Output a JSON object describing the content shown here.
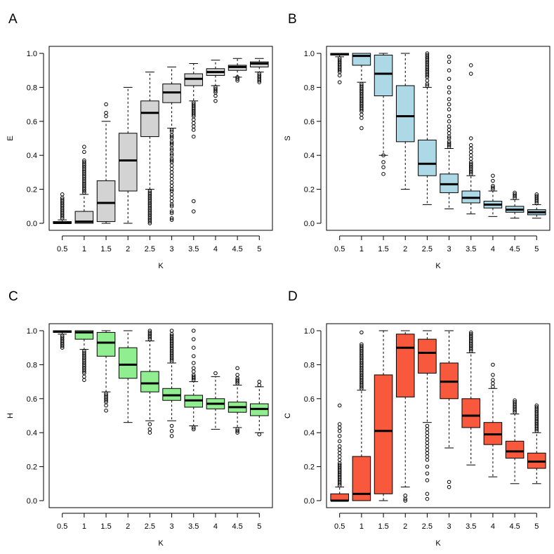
{
  "chart_data": [
    {
      "type": "boxplot",
      "panel_label": "A",
      "xlabel": "K",
      "ylabel": "E",
      "ylim": [
        0,
        1
      ],
      "y_ticks": [
        "0.0",
        "0.2",
        "0.4",
        "0.6",
        "0.8",
        "1.0"
      ],
      "categories": [
        "0.5",
        "1",
        "1.5",
        "2",
        "2.5",
        "3",
        "3.5",
        "4",
        "4.5",
        "5"
      ],
      "box_color": "#d3d3d3",
      "boxes": [
        {
          "category": "0.5",
          "low": 0.0,
          "q1": 0.0,
          "median": 0.002,
          "q3": 0.01,
          "high": 0.02,
          "outliers": [
            0.03,
            0.04,
            0.05,
            0.06,
            0.07,
            0.08,
            0.09,
            0.1,
            0.11,
            0.12,
            0.13,
            0.14,
            0.15,
            0.17
          ]
        },
        {
          "category": "1",
          "low": 0.0,
          "q1": 0.0,
          "median": 0.01,
          "q3": 0.07,
          "high": 0.17,
          "outliers": [
            0.18,
            0.19,
            0.2,
            0.21,
            0.22,
            0.23,
            0.24,
            0.25,
            0.26,
            0.27,
            0.28,
            0.29,
            0.3,
            0.31,
            0.32,
            0.33,
            0.34,
            0.35,
            0.36,
            0.37,
            0.42,
            0.45
          ]
        },
        {
          "category": "1.5",
          "low": 0.0,
          "q1": 0.01,
          "median": 0.12,
          "q3": 0.25,
          "high": 0.6,
          "outliers": [
            0.63,
            0.65,
            0.7
          ]
        },
        {
          "category": "2",
          "low": 0.0,
          "q1": 0.19,
          "median": 0.37,
          "q3": 0.53,
          "high": 0.8,
          "outliers": []
        },
        {
          "category": "2.5",
          "low": 0.2,
          "q1": 0.51,
          "median": 0.65,
          "q3": 0.72,
          "high": 0.89,
          "outliers": [
            0.0,
            0.01,
            0.02,
            0.03,
            0.04,
            0.05,
            0.06,
            0.07,
            0.08,
            0.09,
            0.1,
            0.11,
            0.12,
            0.13,
            0.14,
            0.15,
            0.16,
            0.17,
            0.18,
            0.19
          ]
        },
        {
          "category": "3",
          "low": 0.56,
          "q1": 0.71,
          "median": 0.77,
          "q3": 0.82,
          "high": 0.92,
          "outliers": [
            0.02,
            0.03,
            0.06,
            0.07,
            0.1,
            0.11,
            0.13,
            0.15,
            0.17,
            0.19,
            0.2,
            0.22,
            0.24,
            0.26,
            0.28,
            0.3,
            0.32,
            0.34,
            0.36,
            0.37,
            0.38,
            0.4,
            0.41,
            0.43,
            0.44,
            0.46,
            0.47,
            0.48,
            0.5,
            0.51,
            0.52,
            0.54,
            0.55
          ]
        },
        {
          "category": "3.5",
          "low": 0.72,
          "q1": 0.81,
          "median": 0.85,
          "q3": 0.88,
          "high": 0.94,
          "outliers": [
            0.07,
            0.13,
            0.51,
            0.55,
            0.57,
            0.59,
            0.61,
            0.63,
            0.64,
            0.65,
            0.66,
            0.67,
            0.68,
            0.69,
            0.7,
            0.71
          ]
        },
        {
          "category": "4",
          "low": 0.81,
          "q1": 0.87,
          "median": 0.89,
          "q3": 0.91,
          "high": 0.96,
          "outliers": [
            0.72,
            0.75,
            0.77,
            0.78,
            0.79,
            0.8
          ]
        },
        {
          "category": "4.5",
          "low": 0.86,
          "q1": 0.9,
          "median": 0.92,
          "q3": 0.93,
          "high": 0.97,
          "outliers": [
            0.84,
            0.85,
            0.86
          ]
        },
        {
          "category": "5",
          "low": 0.89,
          "q1": 0.92,
          "median": 0.94,
          "q3": 0.95,
          "high": 0.97,
          "outliers": [
            0.83,
            0.84,
            0.85,
            0.86,
            0.87,
            0.88
          ]
        }
      ]
    },
    {
      "type": "boxplot",
      "panel_label": "B",
      "xlabel": "K",
      "ylabel": "S",
      "ylim": [
        0,
        1
      ],
      "y_ticks": [
        "0.0",
        "0.2",
        "0.4",
        "0.6",
        "0.8",
        "1.0"
      ],
      "categories": [
        "0.5",
        "1",
        "1.5",
        "2",
        "2.5",
        "3",
        "3.5",
        "4",
        "4.5",
        "5"
      ],
      "box_color": "#add8e6",
      "boxes": [
        {
          "category": "0.5",
          "low": 0.98,
          "q1": 0.99,
          "median": 0.995,
          "q3": 1.0,
          "high": 1.0,
          "outliers": [
            0.83,
            0.87,
            0.89,
            0.9,
            0.91,
            0.92,
            0.93,
            0.94,
            0.95,
            0.96,
            0.97
          ]
        },
        {
          "category": "1",
          "low": 0.83,
          "q1": 0.93,
          "median": 0.985,
          "q3": 1.0,
          "high": 1.0,
          "outliers": [
            0.56,
            0.62,
            0.64,
            0.66,
            0.67,
            0.68,
            0.69,
            0.7,
            0.71,
            0.72,
            0.73,
            0.74,
            0.75,
            0.76,
            0.77,
            0.78,
            0.79,
            0.8,
            0.81,
            0.82
          ]
        },
        {
          "category": "1.5",
          "low": 0.4,
          "q1": 0.75,
          "median": 0.88,
          "q3": 0.99,
          "high": 1.0,
          "outliers": [
            0.29,
            0.33,
            0.36,
            0.4
          ]
        },
        {
          "category": "2",
          "low": 0.2,
          "q1": 0.48,
          "median": 0.63,
          "q3": 0.81,
          "high": 1.0,
          "outliers": []
        },
        {
          "category": "2.5",
          "low": 0.11,
          "q1": 0.28,
          "median": 0.35,
          "q3": 0.49,
          "high": 0.8,
          "outliers": [
            0.81,
            0.82,
            0.84,
            0.86,
            0.87,
            0.88,
            0.89,
            0.9,
            0.91,
            0.92,
            0.93,
            0.94,
            0.95,
            0.96,
            0.97,
            0.98,
            0.99,
            1.0
          ]
        },
        {
          "category": "3",
          "low": 0.085,
          "q1": 0.18,
          "median": 0.23,
          "q3": 0.29,
          "high": 0.44,
          "outliers": [
            0.45,
            0.46,
            0.47,
            0.48,
            0.5,
            0.51,
            0.53,
            0.55,
            0.57,
            0.6,
            0.63,
            0.67,
            0.7,
            0.73,
            0.77,
            0.8,
            0.85,
            0.9,
            0.95,
            0.98
          ]
        },
        {
          "category": "3.5",
          "low": 0.055,
          "q1": 0.12,
          "median": 0.15,
          "q3": 0.19,
          "high": 0.28,
          "outliers": [
            0.29,
            0.3,
            0.31,
            0.32,
            0.33,
            0.34,
            0.35,
            0.36,
            0.38,
            0.4,
            0.42,
            0.44,
            0.46,
            0.5,
            0.88,
            0.93
          ]
        },
        {
          "category": "4",
          "low": 0.04,
          "q1": 0.09,
          "median": 0.11,
          "q3": 0.13,
          "high": 0.19,
          "outliers": [
            0.2,
            0.21,
            0.22,
            0.25,
            0.28
          ]
        },
        {
          "category": "4.5",
          "low": 0.03,
          "q1": 0.065,
          "median": 0.08,
          "q3": 0.1,
          "high": 0.14,
          "outliers": [
            0.15,
            0.16,
            0.17,
            0.18
          ]
        },
        {
          "category": "5",
          "low": 0.03,
          "q1": 0.05,
          "median": 0.065,
          "q3": 0.08,
          "high": 0.11,
          "outliers": [
            0.12,
            0.13,
            0.14,
            0.15,
            0.16,
            0.17
          ]
        }
      ]
    },
    {
      "type": "boxplot",
      "panel_label": "C",
      "xlabel": "K",
      "ylabel": "H",
      "ylim": [
        0,
        1
      ],
      "y_ticks": [
        "0.0",
        "0.2",
        "0.4",
        "0.6",
        "0.8",
        "1.0"
      ],
      "categories": [
        "0.5",
        "1",
        "1.5",
        "2",
        "2.5",
        "3",
        "3.5",
        "4",
        "4.5",
        "5"
      ],
      "box_color": "#90ee90",
      "boxes": [
        {
          "category": "0.5",
          "low": 0.98,
          "q1": 0.99,
          "median": 0.995,
          "q3": 1.0,
          "high": 1.0,
          "outliers": [
            0.9,
            0.91,
            0.92,
            0.93,
            0.94,
            0.95,
            0.96,
            0.97
          ]
        },
        {
          "category": "1",
          "low": 0.89,
          "q1": 0.95,
          "median": 0.99,
          "q3": 1.0,
          "high": 1.0,
          "outliers": [
            0.71,
            0.73,
            0.75,
            0.76,
            0.77,
            0.78,
            0.79,
            0.8,
            0.81,
            0.82,
            0.83,
            0.84,
            0.85,
            0.86,
            0.87,
            0.88
          ]
        },
        {
          "category": "1.5",
          "low": 0.64,
          "q1": 0.85,
          "median": 0.93,
          "q3": 0.99,
          "high": 1.0,
          "outliers": [
            0.53,
            0.56,
            0.58,
            0.59,
            0.6,
            0.61,
            0.62,
            0.63
          ]
        },
        {
          "category": "2",
          "low": 0.46,
          "q1": 0.72,
          "median": 0.8,
          "q3": 0.9,
          "high": 1.0,
          "outliers": []
        },
        {
          "category": "2.5",
          "low": 0.47,
          "q1": 0.64,
          "median": 0.69,
          "q3": 0.76,
          "high": 0.94,
          "outliers": [
            0.4,
            0.42,
            0.45,
            0.95,
            0.96,
            0.97,
            0.98,
            0.99,
            1.0
          ]
        },
        {
          "category": "3",
          "low": 0.47,
          "q1": 0.59,
          "median": 0.62,
          "q3": 0.66,
          "high": 0.81,
          "outliers": [
            0.38,
            0.41,
            0.44,
            0.82,
            0.83,
            0.84,
            0.85,
            0.86,
            0.87,
            0.88,
            0.89,
            0.9,
            0.91,
            0.92,
            0.93,
            0.94,
            0.95,
            0.96,
            0.97,
            0.98,
            1.0
          ]
        },
        {
          "category": "3.5",
          "low": 0.44,
          "q1": 0.55,
          "median": 0.59,
          "q3": 0.62,
          "high": 0.7,
          "outliers": [
            0.42,
            0.43,
            0.71,
            0.72,
            0.73,
            0.74,
            0.76,
            0.78,
            0.81,
            0.85,
            0.9,
            0.95,
            1.0
          ]
        },
        {
          "category": "4",
          "low": 0.42,
          "q1": 0.54,
          "median": 0.57,
          "q3": 0.6,
          "high": 0.73,
          "outliers": [
            0.75
          ]
        },
        {
          "category": "4.5",
          "low": 0.43,
          "q1": 0.52,
          "median": 0.55,
          "q3": 0.58,
          "high": 0.68,
          "outliers": [
            0.4,
            0.41,
            0.42,
            0.69,
            0.7,
            0.71,
            0.72,
            0.74,
            0.78
          ]
        },
        {
          "category": "5",
          "low": 0.4,
          "q1": 0.5,
          "median": 0.54,
          "q3": 0.57,
          "high": 0.67,
          "outliers": [
            0.39,
            0.68,
            0.7
          ]
        }
      ]
    },
    {
      "type": "boxplot",
      "panel_label": "D",
      "xlabel": "K",
      "ylabel": "C",
      "ylim": [
        0,
        1
      ],
      "y_ticks": [
        "0.0",
        "0.2",
        "0.4",
        "0.6",
        "0.8",
        "1.0"
      ],
      "categories": [
        "0.5",
        "1",
        "1.5",
        "2",
        "2.5",
        "3",
        "3.5",
        "4",
        "4.5",
        "5"
      ],
      "box_color": "#f8593c",
      "boxes": [
        {
          "category": "0.5",
          "low": 0.0,
          "q1": 0.0,
          "median": 0.0,
          "q3": 0.04,
          "high": 0.08,
          "outliers": [
            0.09,
            0.1,
            0.11,
            0.12,
            0.13,
            0.14,
            0.15,
            0.16,
            0.17,
            0.18,
            0.19,
            0.2,
            0.21,
            0.22,
            0.24,
            0.26,
            0.28,
            0.3,
            0.32,
            0.35,
            0.38,
            0.41,
            0.43,
            0.45,
            0.56
          ]
        },
        {
          "category": "1",
          "low": 0.0,
          "q1": 0.0,
          "median": 0.04,
          "q3": 0.26,
          "high": 0.65,
          "outliers": [
            0.66,
            0.67,
            0.68,
            0.69,
            0.7,
            0.71,
            0.72,
            0.73,
            0.74,
            0.75,
            0.76,
            0.77,
            0.78,
            0.79,
            0.8,
            0.81,
            0.82,
            0.83,
            0.84,
            0.85,
            0.86,
            0.87,
            0.88,
            0.89,
            0.9,
            0.91,
            0.92,
            0.99
          ]
        },
        {
          "category": "1.5",
          "low": 0.0,
          "q1": 0.04,
          "median": 0.41,
          "q3": 0.74,
          "high": 1.0,
          "outliers": []
        },
        {
          "category": "2",
          "low": 0.08,
          "q1": 0.61,
          "median": 0.9,
          "q3": 0.98,
          "high": 1.0,
          "outliers": [
            0.0,
            0.01,
            0.03
          ]
        },
        {
          "category": "2.5",
          "low": 0.46,
          "q1": 0.75,
          "median": 0.87,
          "q3": 0.95,
          "high": 1.0,
          "outliers": [
            0.01,
            0.04,
            0.12,
            0.16,
            0.2,
            0.24,
            0.26,
            0.28,
            0.3,
            0.32,
            0.34,
            0.36,
            0.38,
            0.4,
            0.42,
            0.44
          ]
        },
        {
          "category": "3",
          "low": 0.31,
          "q1": 0.6,
          "median": 0.7,
          "q3": 0.81,
          "high": 1.0,
          "outliers": [
            0.08,
            0.11
          ]
        },
        {
          "category": "3.5",
          "low": 0.21,
          "q1": 0.43,
          "median": 0.5,
          "q3": 0.6,
          "high": 0.87,
          "outliers": [
            0.88,
            0.89,
            0.9,
            0.91,
            0.92,
            0.93,
            0.94,
            0.95,
            0.96,
            0.97,
            0.98,
            0.99
          ]
        },
        {
          "category": "4",
          "low": 0.14,
          "q1": 0.33,
          "median": 0.39,
          "q3": 0.46,
          "high": 0.66,
          "outliers": [
            0.67,
            0.69,
            0.71,
            0.74,
            0.8
          ]
        },
        {
          "category": "4.5",
          "low": 0.1,
          "q1": 0.25,
          "median": 0.29,
          "q3": 0.35,
          "high": 0.51,
          "outliers": [
            0.52,
            0.53,
            0.54,
            0.55,
            0.56,
            0.57,
            0.58,
            0.59
          ]
        },
        {
          "category": "5",
          "low": 0.1,
          "q1": 0.19,
          "median": 0.23,
          "q3": 0.28,
          "high": 0.4,
          "outliers": [
            0.41,
            0.42,
            0.43,
            0.44,
            0.45,
            0.46,
            0.47,
            0.48,
            0.49,
            0.5,
            0.51,
            0.52,
            0.53,
            0.54,
            0.55,
            0.56
          ]
        }
      ]
    }
  ]
}
